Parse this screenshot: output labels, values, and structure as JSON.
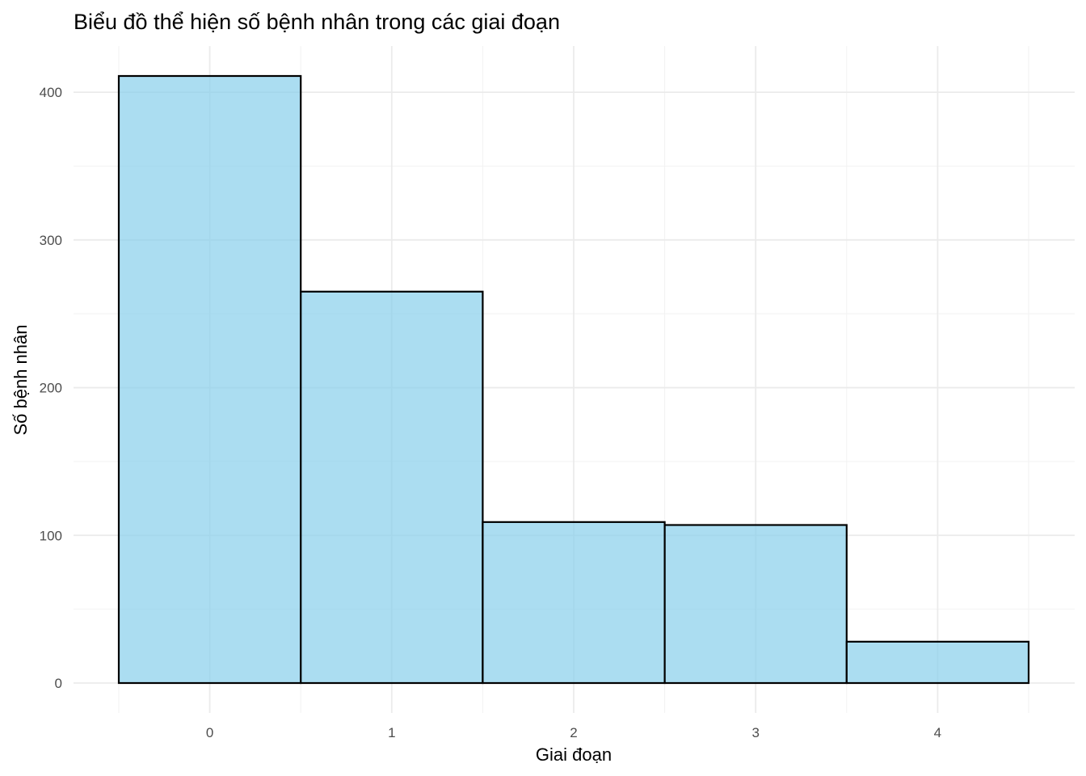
{
  "chart_data": {
    "type": "bar",
    "title": "Biểu đồ thể hiện số bệnh nhân trong các giai đoạn",
    "xlabel": "Giai đoạn",
    "ylabel": "Số bệnh nhân",
    "categories": [
      "0",
      "1",
      "2",
      "3",
      "4"
    ],
    "x": [
      0,
      1,
      2,
      3,
      4
    ],
    "values": [
      411,
      265,
      109,
      107,
      28
    ],
    "xlim": [
      -0.5,
      4.5
    ],
    "ylim": [
      0,
      411
    ],
    "y_ticks": [
      0,
      100,
      200,
      300,
      400
    ],
    "x_ticks": [
      0,
      1,
      2,
      3,
      4
    ],
    "bar_fill": "#87ceeb",
    "bar_fill_opacity": 0.7,
    "bar_outline": "#000000",
    "grid": true,
    "legend": "none"
  }
}
